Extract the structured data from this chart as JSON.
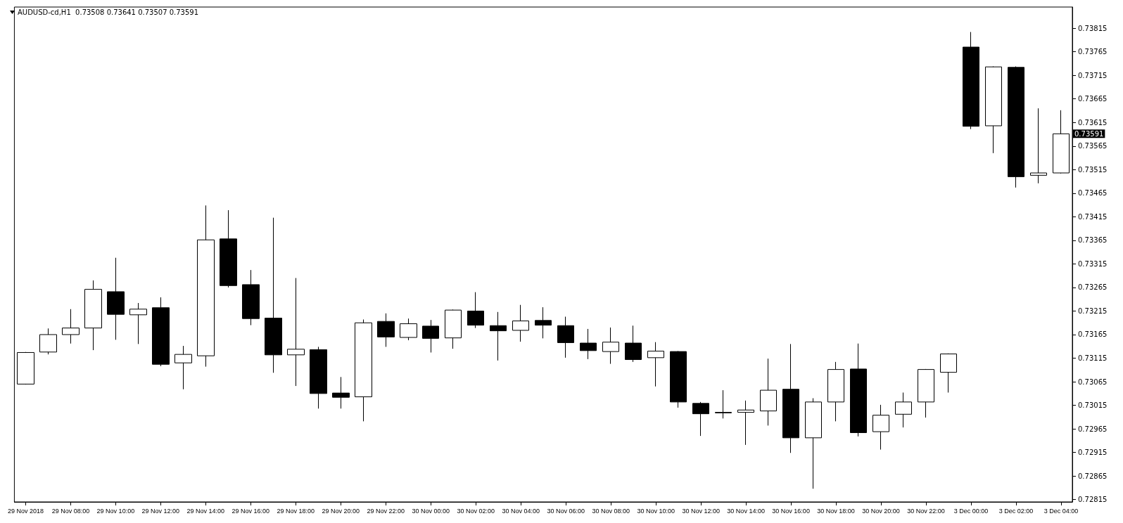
{
  "chart_data": {
    "type": "candlestick",
    "title": "AUDUSD-cd,H1  0.73508 0.73641 0.73507 0.73591",
    "color": "#000000",
    "categories": [
      "29 Nov 2018",
      null,
      "29 Nov 08:00",
      null,
      "29 Nov 10:00",
      null,
      "29 Nov 12:00",
      null,
      "29 Nov 14:00",
      null,
      "29 Nov 16:00",
      null,
      "29 Nov 18:00",
      null,
      "29 Nov 20:00",
      null,
      "29 Nov 22:00",
      null,
      "30 Nov 00:00",
      null,
      "30 Nov 02:00",
      null,
      "30 Nov 04:00",
      null,
      "30 Nov 06:00",
      null,
      "30 Nov 08:00",
      null,
      "30 Nov 10:00",
      null,
      "30 Nov 12:00",
      null,
      "30 Nov 14:00",
      null,
      "30 Nov 16:00",
      null,
      "30 Nov 18:00",
      null,
      "30 Nov 20:00",
      null,
      "30 Nov 22:00",
      null,
      "3 Dec 00:00",
      null,
      "3 Dec 02:00",
      null,
      "3 Dec 04:00"
    ],
    "ohlc": [
      [
        0.7306,
        0.73128,
        0.73059,
        0.73127
      ],
      [
        0.73128,
        0.73178,
        0.73123,
        0.73165
      ],
      [
        0.73165,
        0.73219,
        0.73146,
        0.73179
      ],
      [
        0.73179,
        0.7328,
        0.73132,
        0.73261
      ],
      [
        0.73256,
        0.73328,
        0.73154,
        0.73208
      ],
      [
        0.73207,
        0.73232,
        0.73145,
        0.73219
      ],
      [
        0.73222,
        0.73244,
        0.73098,
        0.73102
      ],
      [
        0.73105,
        0.73141,
        0.73049,
        0.73123
      ],
      [
        0.7312,
        0.73439,
        0.73097,
        0.73366
      ],
      [
        0.73368,
        0.73429,
        0.73265,
        0.73269
      ],
      [
        0.73271,
        0.73302,
        0.73185,
        0.73199
      ],
      [
        0.732,
        0.73413,
        0.73084,
        0.73122
      ],
      [
        0.73122,
        0.73285,
        0.73056,
        0.73134
      ],
      [
        0.73133,
        0.73139,
        0.73008,
        0.7304
      ],
      [
        0.73041,
        0.73075,
        0.73008,
        0.73032
      ],
      [
        0.73033,
        0.73197,
        0.72981,
        0.7319
      ],
      [
        0.73193,
        0.7321,
        0.73139,
        0.7316
      ],
      [
        0.73159,
        0.73199,
        0.73153,
        0.73188
      ],
      [
        0.73183,
        0.73196,
        0.73127,
        0.73157
      ],
      [
        0.73158,
        0.73218,
        0.73135,
        0.73217
      ],
      [
        0.73215,
        0.73255,
        0.73179,
        0.73185
      ],
      [
        0.73184,
        0.73213,
        0.7311,
        0.73173
      ],
      [
        0.73174,
        0.73228,
        0.7315,
        0.73194
      ],
      [
        0.73195,
        0.73223,
        0.73157,
        0.73185
      ],
      [
        0.73184,
        0.73203,
        0.73116,
        0.73148
      ],
      [
        0.73147,
        0.73177,
        0.73113,
        0.73131
      ],
      [
        0.73129,
        0.7318,
        0.73103,
        0.73149
      ],
      [
        0.73147,
        0.73184,
        0.73107,
        0.73112
      ],
      [
        0.73116,
        0.73149,
        0.73055,
        0.7313
      ],
      [
        0.73129,
        0.7313,
        0.7301,
        0.73022
      ],
      [
        0.73019,
        0.73022,
        0.7295,
        0.72997
      ],
      [
        0.73,
        0.73047,
        0.72987,
        0.72999
      ],
      [
        0.73,
        0.73025,
        0.72931,
        0.73005
      ],
      [
        0.73003,
        0.73114,
        0.72972,
        0.73047
      ],
      [
        0.73049,
        0.73145,
        0.72914,
        0.72946
      ],
      [
        0.72946,
        0.7303,
        0.72838,
        0.73022
      ],
      [
        0.73022,
        0.73107,
        0.72981,
        0.73091
      ],
      [
        0.73092,
        0.73146,
        0.72949,
        0.72957
      ],
      [
        0.72959,
        0.73016,
        0.72921,
        0.72994
      ],
      [
        0.72996,
        0.73042,
        0.72968,
        0.73022
      ],
      [
        0.73022,
        0.73092,
        0.72989,
        0.73091
      ],
      [
        0.73085,
        0.73125,
        0.73042,
        0.73124
      ],
      [
        0.73775,
        0.73807,
        0.73601,
        0.73607
      ],
      [
        0.73608,
        0.73734,
        0.7355,
        0.73733
      ],
      [
        0.73732,
        0.73734,
        0.73477,
        0.735
      ],
      [
        0.73503,
        0.73645,
        0.73486,
        0.73508
      ],
      [
        0.73508,
        0.73641,
        0.73507,
        0.73591
      ]
    ],
    "ylim": [
      0.7281,
      0.7386
    ],
    "yticks": [
      0.72815,
      0.72865,
      0.72915,
      0.72965,
      0.73015,
      0.73065,
      0.73115,
      0.73165,
      0.73215,
      0.73265,
      0.73315,
      0.73365,
      0.73415,
      0.73465,
      0.73515,
      0.73565,
      0.73615,
      0.73665,
      0.73715,
      0.73765,
      0.73815
    ],
    "annotations": [
      "0.73591"
    ],
    "grid": false
  }
}
